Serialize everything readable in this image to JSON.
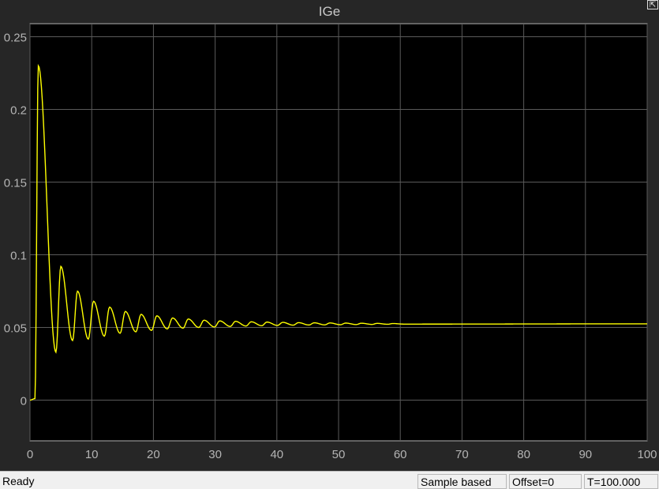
{
  "chart_data": {
    "type": "line",
    "title": "IGe",
    "xlabel": "",
    "ylabel": "",
    "xlim": [
      0,
      100
    ],
    "ylim": [
      -0.028,
      0.259
    ],
    "xticks": [
      0,
      10,
      20,
      30,
      40,
      50,
      60,
      70,
      80,
      90,
      100
    ],
    "yticks": [
      0,
      0.05,
      0.1,
      0.15,
      0.2,
      0.25
    ],
    "ytick_labels": [
      "0",
      "0.05",
      "0.1",
      "0.15",
      "0.2",
      "0.25"
    ],
    "grid": true,
    "background": "#000000",
    "line_color": "#ffff00",
    "grid_color": "#5a5a5a",
    "series": [
      {
        "t": [
          0,
          0.8,
          1.35,
          4.2,
          5.0,
          6.9,
          7.7,
          9.45,
          10.3,
          12.05,
          12.9,
          14.6,
          15.45,
          17.15,
          18.0,
          19.7,
          20.55,
          22.25,
          23.1,
          24.8,
          25.65,
          27.35,
          28.2,
          29.9,
          30.75,
          32.45,
          33.3,
          35.0,
          35.85,
          37.55,
          38.4,
          40.1,
          40.95,
          42.65,
          43.5,
          45.2,
          46.05,
          47.75,
          48.6,
          50.3,
          51.15,
          52.85,
          53.7,
          55.4,
          56.25,
          57.95,
          58.8,
          60.5,
          100
        ],
        "y": [
          0,
          0.001,
          0.23,
          0.033,
          0.092,
          0.041,
          0.075,
          0.042,
          0.068,
          0.044,
          0.064,
          0.046,
          0.061,
          0.047,
          0.059,
          0.048,
          0.058,
          0.049,
          0.0565,
          0.0495,
          0.0558,
          0.05,
          0.055,
          0.0503,
          0.0545,
          0.0507,
          0.0542,
          0.051,
          0.0539,
          0.0512,
          0.0537,
          0.0514,
          0.0535,
          0.0516,
          0.0533,
          0.0517,
          0.0532,
          0.0518,
          0.0531,
          0.0519,
          0.053,
          0.052,
          0.0529,
          0.0521,
          0.0528,
          0.0522,
          0.0527,
          0.0523,
          0.0525
        ]
      }
    ]
  },
  "window": {
    "undock_icon": "undock-icon",
    "undock_glyph": "⇱"
  },
  "status": {
    "ready": "Ready",
    "mode": "Sample based",
    "offset": "Offset=0",
    "time": "T=100.000"
  }
}
